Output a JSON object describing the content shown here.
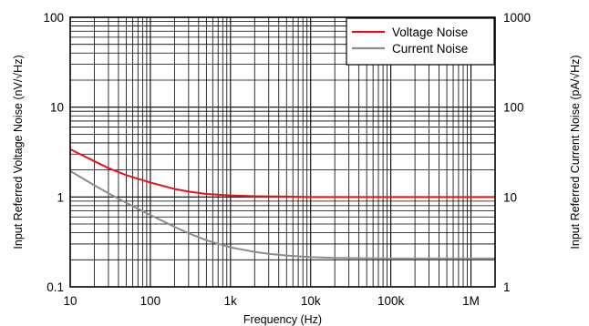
{
  "chart_data": {
    "type": "line",
    "title": "",
    "xlabel": "Frequency (Hz)",
    "ylabel_left": "Input Referred Voltage Noise (nV/√Hz)",
    "ylabel_right": "Input Referred Current Noise (pA/√Hz)",
    "x_scale": "log",
    "y_scale": "log",
    "xlim": [
      10,
      2000000
    ],
    "ylim_left": [
      0.1,
      100
    ],
    "ylim_right": [
      1,
      1000
    ],
    "x_ticks": [
      {
        "value": 10,
        "label": "10"
      },
      {
        "value": 100,
        "label": "100"
      },
      {
        "value": 1000,
        "label": "1k"
      },
      {
        "value": 10000,
        "label": "10k"
      },
      {
        "value": 100000,
        "label": "100k"
      },
      {
        "value": 1000000,
        "label": "1M"
      }
    ],
    "y_ticks_left": [
      {
        "value": 0.1,
        "label": "0.1"
      },
      {
        "value": 1,
        "label": "1"
      },
      {
        "value": 10,
        "label": "10"
      },
      {
        "value": 100,
        "label": "100"
      }
    ],
    "y_ticks_right": [
      {
        "value": 1,
        "label": "1"
      },
      {
        "value": 10,
        "label": "10"
      },
      {
        "value": 100,
        "label": "100"
      },
      {
        "value": 1000,
        "label": "1000"
      }
    ],
    "grid": true,
    "legend_position": "top-right",
    "series": [
      {
        "name": "Voltage Noise",
        "axis": "left",
        "color": "#e8121c",
        "x": [
          10,
          20,
          30,
          50,
          100,
          200,
          300,
          500,
          1000,
          2000,
          5000,
          10000,
          100000,
          1000000,
          2000000
        ],
        "y": [
          3.4,
          2.5,
          2.1,
          1.75,
          1.45,
          1.23,
          1.15,
          1.08,
          1.04,
          1.02,
          1.01,
          1.0,
          1.0,
          1.0,
          1.0
        ]
      },
      {
        "name": "Current Noise",
        "axis": "right",
        "color": "#8c8c8c",
        "x": [
          10,
          20,
          30,
          50,
          100,
          200,
          300,
          500,
          1000,
          2000,
          3000,
          5000,
          10000,
          20000,
          50000,
          100000,
          1000000,
          2000000
        ],
        "y": [
          19.5,
          13.5,
          11.0,
          8.6,
          6.3,
          4.65,
          3.95,
          3.3,
          2.75,
          2.45,
          2.33,
          2.23,
          2.14,
          2.1,
          2.08,
          2.07,
          2.07,
          2.07
        ]
      }
    ]
  }
}
